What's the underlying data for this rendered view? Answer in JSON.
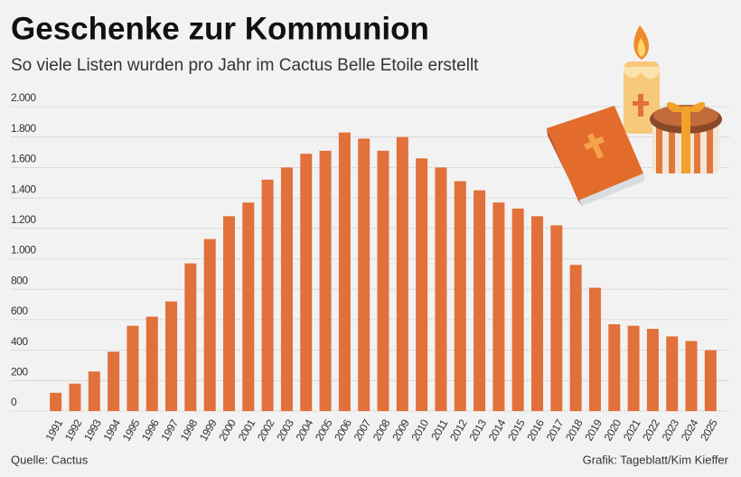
{
  "chart_data": {
    "type": "bar",
    "title": "Geschenke zur Kommunion",
    "subtitle": "So viele Listen wurden pro Jahr im Cactus Belle Etoile erstellt",
    "source": "Quelle: Cactus",
    "credit": "Grafik: Tageblatt/Kim Kieffer",
    "categories": [
      "1991",
      "1992",
      "1993",
      "1994",
      "1995",
      "1996",
      "1997",
      "1998",
      "1999",
      "2000",
      "2001",
      "2002",
      "2003",
      "2004",
      "2005",
      "2006",
      "2007",
      "2008",
      "2009",
      "2010",
      "2011",
      "2012",
      "2013",
      "2014",
      "2015",
      "2016",
      "2017",
      "2018",
      "2019",
      "2020",
      "2021",
      "2022",
      "2023",
      "2024",
      "2025"
    ],
    "values": [
      120,
      180,
      260,
      390,
      560,
      620,
      720,
      970,
      1130,
      1280,
      1370,
      1520,
      1600,
      1690,
      1710,
      1830,
      1790,
      1710,
      1800,
      1660,
      1600,
      1510,
      1450,
      1370,
      1330,
      1280,
      1220,
      960,
      810,
      570,
      560,
      540,
      490,
      460,
      400
    ],
    "color": "#e2703a",
    "ylim": [
      0,
      2000
    ],
    "yticks": [
      0,
      200,
      400,
      600,
      800,
      {
        "value": 1000,
        "label": "1.000"
      },
      {
        "value": 1200,
        "label": "1.200"
      },
      {
        "value": 1400,
        "label": "1.400"
      },
      {
        "value": 1600,
        "label": "1.600"
      },
      {
        "value": 1800,
        "label": "1.800"
      },
      {
        "value": 2000,
        "label": "2.000"
      }
    ],
    "grid": true
  }
}
